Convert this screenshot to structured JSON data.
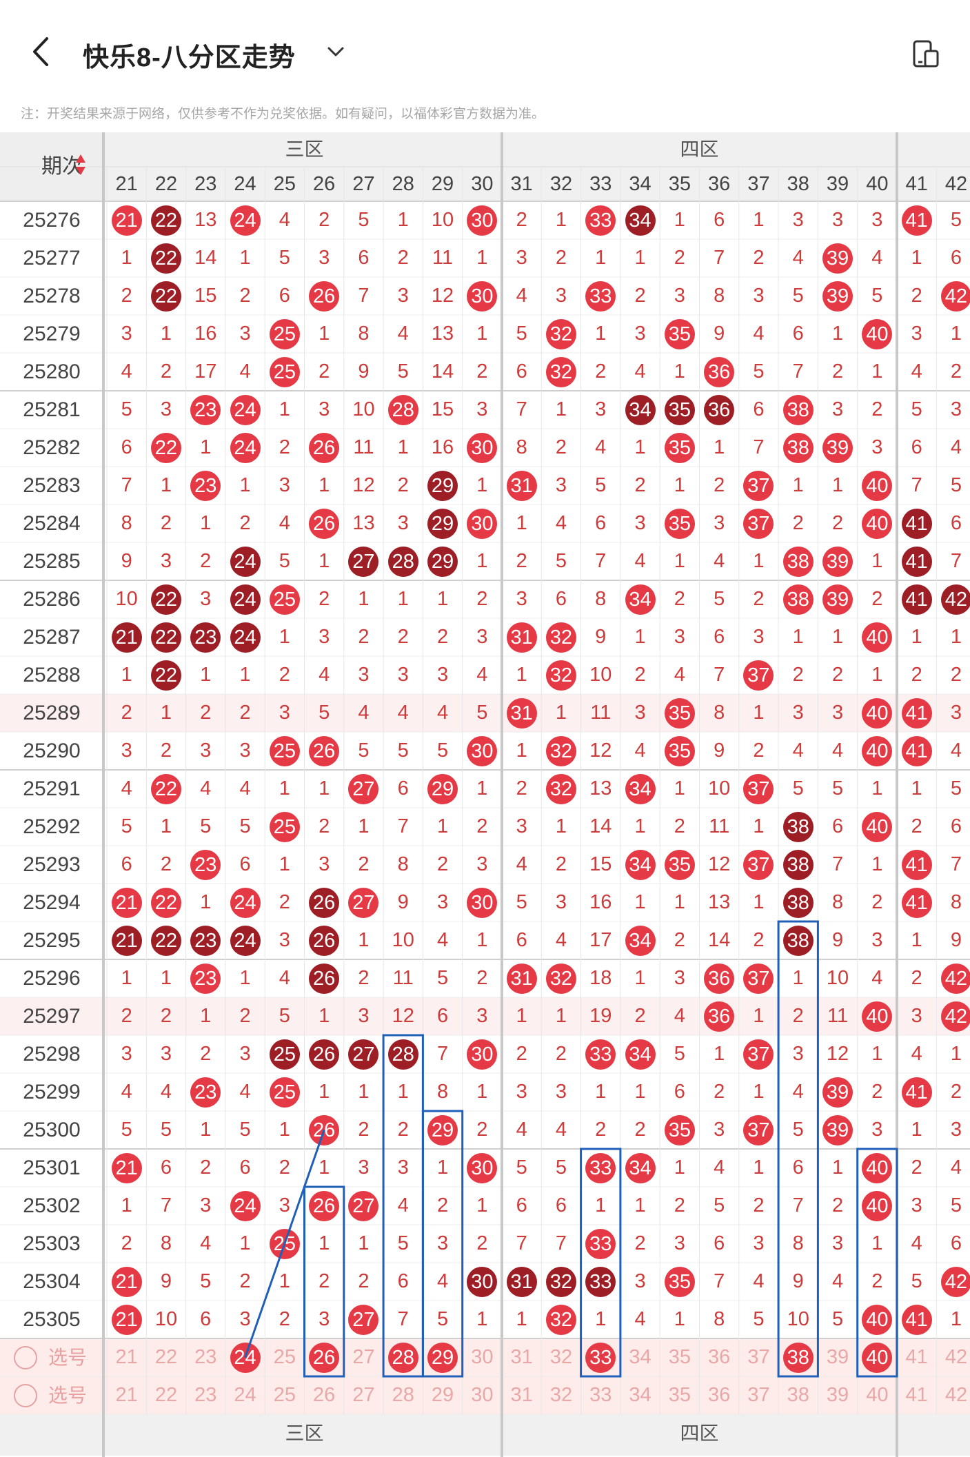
{
  "header": {
    "title": "快乐8-八分区走势",
    "note": "注：开奖结果来源于网络，仅供参考不作为兑奖依据。如有疑问，以福体彩官方数据为准。"
  },
  "table": {
    "issue_header": "期次",
    "zones": [
      {
        "label": "三区",
        "start": 21,
        "end": 30
      },
      {
        "label": "四区",
        "start": 31,
        "end": 40
      }
    ],
    "columns": [
      "21",
      "22",
      "23",
      "24",
      "25",
      "26",
      "27",
      "28",
      "29",
      "30",
      "31",
      "32",
      "33",
      "34",
      "35",
      "36",
      "37",
      "38",
      "39",
      "40",
      "41",
      "42"
    ],
    "select_label": "选号",
    "rows": [
      {
        "issue": "25276",
        "cells": [
          "21",
          "22",
          "13",
          "24",
          "4",
          "2",
          "5",
          "1",
          "10",
          "30",
          "2",
          "1",
          "33",
          "34",
          "1",
          "6",
          "1",
          "3",
          "3",
          "3",
          "41",
          "5"
        ],
        "dark": [
          1,
          13
        ]
      },
      {
        "issue": "25277",
        "cells": [
          "1",
          "22",
          "14",
          "1",
          "5",
          "3",
          "6",
          "2",
          "11",
          "1",
          "3",
          "2",
          "1",
          "1",
          "2",
          "7",
          "2",
          "4",
          "39",
          "4",
          "1",
          "6"
        ],
        "dark": [
          1
        ]
      },
      {
        "issue": "25278",
        "cells": [
          "2",
          "22",
          "15",
          "2",
          "6",
          "26",
          "7",
          "3",
          "12",
          "30",
          "4",
          "3",
          "33",
          "2",
          "3",
          "8",
          "3",
          "5",
          "39",
          "5",
          "2",
          "42"
        ],
        "dark": [
          1
        ]
      },
      {
        "issue": "25279",
        "cells": [
          "3",
          "1",
          "16",
          "3",
          "25",
          "1",
          "8",
          "4",
          "13",
          "1",
          "5",
          "32",
          "1",
          "3",
          "35",
          "9",
          "4",
          "6",
          "1",
          "40",
          "3",
          "1"
        ],
        "dark": []
      },
      {
        "issue": "25280",
        "cells": [
          "4",
          "2",
          "17",
          "4",
          "25",
          "2",
          "9",
          "5",
          "14",
          "2",
          "6",
          "32",
          "2",
          "4",
          "1",
          "36",
          "5",
          "7",
          "2",
          "1",
          "4",
          "2"
        ],
        "dark": []
      },
      {
        "issue": "25281",
        "cells": [
          "5",
          "3",
          "23",
          "24",
          "1",
          "3",
          "10",
          "28",
          "15",
          "3",
          "7",
          "1",
          "3",
          "34",
          "35",
          "36",
          "6",
          "38",
          "3",
          "2",
          "5",
          "3"
        ],
        "dark": [
          13,
          14,
          15
        ]
      },
      {
        "issue": "25282",
        "cells": [
          "6",
          "22",
          "1",
          "24",
          "2",
          "26",
          "11",
          "1",
          "16",
          "30",
          "8",
          "2",
          "4",
          "1",
          "35",
          "1",
          "7",
          "38",
          "39",
          "3",
          "6",
          "4"
        ],
        "dark": []
      },
      {
        "issue": "25283",
        "cells": [
          "7",
          "1",
          "23",
          "1",
          "3",
          "1",
          "12",
          "2",
          "29",
          "1",
          "31",
          "3",
          "5",
          "2",
          "1",
          "2",
          "37",
          "1",
          "1",
          "40",
          "7",
          "5"
        ],
        "dark": [
          8
        ]
      },
      {
        "issue": "25284",
        "cells": [
          "8",
          "2",
          "1",
          "2",
          "4",
          "26",
          "13",
          "3",
          "29",
          "30",
          "1",
          "4",
          "6",
          "3",
          "35",
          "3",
          "37",
          "2",
          "2",
          "40",
          "41",
          "6"
        ],
        "dark": [
          8,
          20
        ]
      },
      {
        "issue": "25285",
        "cells": [
          "9",
          "3",
          "2",
          "24",
          "5",
          "1",
          "27",
          "28",
          "29",
          "1",
          "2",
          "5",
          "7",
          "4",
          "1",
          "4",
          "1",
          "38",
          "39",
          "1",
          "41",
          "7"
        ],
        "dark": [
          3,
          6,
          7,
          8,
          20
        ]
      },
      {
        "issue": "25286",
        "cells": [
          "10",
          "22",
          "3",
          "24",
          "25",
          "2",
          "1",
          "1",
          "1",
          "2",
          "3",
          "6",
          "8",
          "34",
          "2",
          "5",
          "2",
          "38",
          "39",
          "2",
          "41",
          "42"
        ],
        "dark": [
          1,
          3,
          20,
          21
        ]
      },
      {
        "issue": "25287",
        "cells": [
          "21",
          "22",
          "23",
          "24",
          "1",
          "3",
          "2",
          "2",
          "2",
          "3",
          "31",
          "32",
          "9",
          "1",
          "3",
          "6",
          "3",
          "1",
          "1",
          "40",
          "1",
          "1"
        ],
        "dark": [
          0,
          1,
          2,
          3
        ]
      },
      {
        "issue": "25288",
        "cells": [
          "1",
          "22",
          "1",
          "1",
          "2",
          "4",
          "3",
          "3",
          "3",
          "4",
          "1",
          "32",
          "10",
          "2",
          "4",
          "7",
          "37",
          "2",
          "2",
          "1",
          "2",
          "2"
        ],
        "dark": [
          1
        ]
      },
      {
        "issue": "25289",
        "cells": [
          "2",
          "1",
          "2",
          "2",
          "3",
          "5",
          "4",
          "4",
          "4",
          "5",
          "31",
          "1",
          "11",
          "3",
          "35",
          "8",
          "1",
          "3",
          "3",
          "40",
          "41",
          "3"
        ],
        "dark": [],
        "pink": true
      },
      {
        "issue": "25290",
        "cells": [
          "3",
          "2",
          "3",
          "3",
          "25",
          "26",
          "5",
          "5",
          "5",
          "30",
          "1",
          "32",
          "12",
          "4",
          "35",
          "9",
          "2",
          "4",
          "4",
          "40",
          "41",
          "4"
        ],
        "dark": []
      },
      {
        "issue": "25291",
        "cells": [
          "4",
          "22",
          "4",
          "4",
          "1",
          "1",
          "27",
          "6",
          "29",
          "1",
          "2",
          "32",
          "13",
          "34",
          "1",
          "10",
          "37",
          "5",
          "5",
          "1",
          "1",
          "5"
        ],
        "dark": []
      },
      {
        "issue": "25292",
        "cells": [
          "5",
          "1",
          "5",
          "5",
          "25",
          "2",
          "1",
          "7",
          "1",
          "2",
          "3",
          "1",
          "14",
          "1",
          "2",
          "11",
          "1",
          "38",
          "6",
          "40",
          "2",
          "6"
        ],
        "dark": [
          17
        ]
      },
      {
        "issue": "25293",
        "cells": [
          "6",
          "2",
          "23",
          "6",
          "1",
          "3",
          "2",
          "8",
          "2",
          "3",
          "4",
          "2",
          "15",
          "34",
          "35",
          "12",
          "37",
          "38",
          "7",
          "1",
          "41",
          "7"
        ],
        "dark": [
          17
        ]
      },
      {
        "issue": "25294",
        "cells": [
          "21",
          "22",
          "1",
          "24",
          "2",
          "26",
          "27",
          "9",
          "3",
          "30",
          "5",
          "3",
          "16",
          "1",
          "1",
          "13",
          "1",
          "38",
          "8",
          "2",
          "41",
          "8"
        ],
        "dark": [
          5,
          17
        ]
      },
      {
        "issue": "25295",
        "cells": [
          "21",
          "22",
          "23",
          "24",
          "3",
          "26",
          "1",
          "10",
          "4",
          "1",
          "6",
          "4",
          "17",
          "34",
          "2",
          "14",
          "2",
          "38",
          "9",
          "3",
          "1",
          "9"
        ],
        "dark": [
          0,
          1,
          2,
          3,
          5,
          17
        ]
      },
      {
        "issue": "25296",
        "cells": [
          "1",
          "1",
          "23",
          "1",
          "4",
          "26",
          "2",
          "11",
          "5",
          "2",
          "31",
          "32",
          "18",
          "1",
          "3",
          "36",
          "37",
          "1",
          "10",
          "4",
          "2",
          "42"
        ],
        "dark": [
          5
        ]
      },
      {
        "issue": "25297",
        "cells": [
          "2",
          "2",
          "1",
          "2",
          "5",
          "1",
          "3",
          "12",
          "6",
          "3",
          "1",
          "1",
          "19",
          "2",
          "4",
          "36",
          "1",
          "2",
          "11",
          "40",
          "3",
          "42"
        ],
        "dark": [],
        "pink": true
      },
      {
        "issue": "25298",
        "cells": [
          "3",
          "3",
          "2",
          "3",
          "25",
          "26",
          "27",
          "28",
          "7",
          "30",
          "2",
          "2",
          "33",
          "34",
          "5",
          "1",
          "37",
          "3",
          "12",
          "1",
          "4",
          "1"
        ],
        "dark": [
          4,
          5,
          6,
          7
        ]
      },
      {
        "issue": "25299",
        "cells": [
          "4",
          "4",
          "23",
          "4",
          "25",
          "1",
          "1",
          "1",
          "8",
          "1",
          "3",
          "3",
          "1",
          "1",
          "6",
          "2",
          "1",
          "4",
          "39",
          "2",
          "41",
          "2"
        ],
        "dark": []
      },
      {
        "issue": "25300",
        "cells": [
          "5",
          "5",
          "1",
          "5",
          "1",
          "26",
          "2",
          "2",
          "29",
          "2",
          "4",
          "4",
          "2",
          "2",
          "35",
          "3",
          "37",
          "5",
          "39",
          "3",
          "1",
          "3"
        ],
        "dark": []
      },
      {
        "issue": "25301",
        "cells": [
          "21",
          "6",
          "2",
          "6",
          "2",
          "1",
          "3",
          "3",
          "1",
          "30",
          "5",
          "5",
          "33",
          "34",
          "1",
          "4",
          "1",
          "6",
          "1",
          "40",
          "2",
          "4"
        ],
        "dark": []
      },
      {
        "issue": "25302",
        "cells": [
          "1",
          "7",
          "3",
          "24",
          "3",
          "26",
          "27",
          "4",
          "2",
          "1",
          "6",
          "6",
          "1",
          "1",
          "2",
          "5",
          "2",
          "7",
          "2",
          "40",
          "3",
          "5"
        ],
        "dark": []
      },
      {
        "issue": "25303",
        "cells": [
          "2",
          "8",
          "4",
          "1",
          "25",
          "1",
          "1",
          "5",
          "3",
          "2",
          "7",
          "7",
          "33",
          "2",
          "3",
          "6",
          "3",
          "8",
          "3",
          "1",
          "4",
          "6"
        ],
        "dark": []
      },
      {
        "issue": "25304",
        "cells": [
          "21",
          "9",
          "5",
          "2",
          "1",
          "2",
          "2",
          "6",
          "4",
          "30",
          "31",
          "32",
          "33",
          "3",
          "35",
          "7",
          "4",
          "9",
          "4",
          "2",
          "5",
          "42"
        ],
        "dark": [
          9,
          10,
          11,
          12
        ]
      },
      {
        "issue": "25305",
        "cells": [
          "21",
          "10",
          "6",
          "3",
          "2",
          "3",
          "27",
          "7",
          "5",
          "1",
          "1",
          "32",
          "1",
          "4",
          "1",
          "8",
          "5",
          "10",
          "5",
          "40",
          "41",
          "1"
        ],
        "dark": []
      }
    ],
    "select_row_1": [
      "21",
      "22",
      "23",
      "24",
      "25",
      "26",
      "27",
      "28",
      "29",
      "30",
      "31",
      "32",
      "33",
      "34",
      "35",
      "36",
      "37",
      "38",
      "39",
      "40",
      "41",
      "42"
    ],
    "select_row_1_selected": [
      "24",
      "26",
      "28",
      "29",
      "33",
      "38",
      "40"
    ],
    "select_row_2": [
      "21",
      "22",
      "23",
      "24",
      "25",
      "26",
      "27",
      "28",
      "29",
      "30",
      "31",
      "32",
      "33",
      "34",
      "35",
      "36",
      "37",
      "38",
      "39",
      "40",
      "41",
      "42"
    ],
    "footer_zones": [
      "三区",
      "四区"
    ]
  },
  "colors": {
    "ball_red": "#e53a45",
    "ball_dark": "#9e1e26",
    "cell_text": "#cd3b3b",
    "highlight_box": "#1f5fb8"
  }
}
